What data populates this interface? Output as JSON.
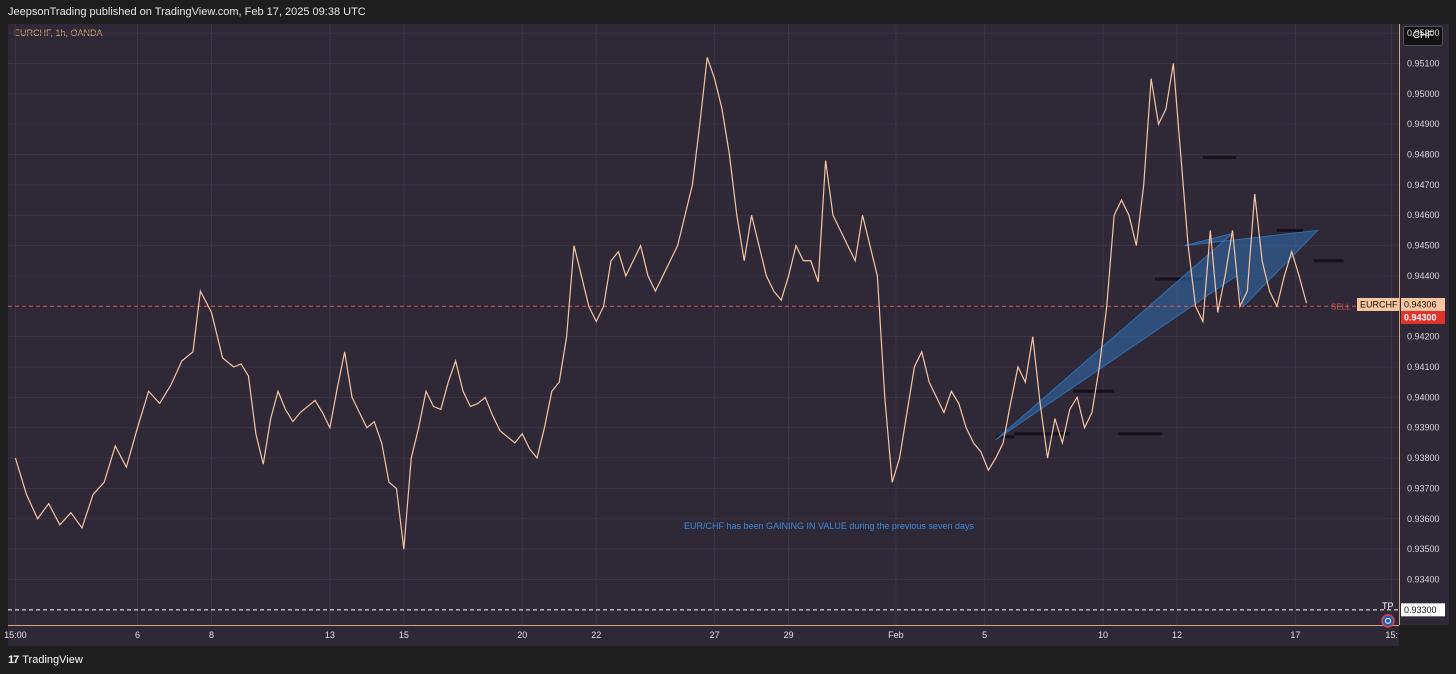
{
  "header": {
    "published_by": "JeepsonTrading published on TradingView.com, Feb 17, 2025 09:38 UTC"
  },
  "footer": {
    "brand_mark": "17",
    "brand_name": "TradingView"
  },
  "colors": {
    "price_line": "#f7c59f",
    "sell_line": "#e05555",
    "tp_line": "#ffffff",
    "accent_blue": "#2f6fb3",
    "background": "#2f2837"
  },
  "icons": {
    "tp_marker": "globe-icon"
  },
  "chart_data": {
    "type": "line",
    "symbol_title": "EURCHF, 1h, OANDA",
    "currency": "CHF",
    "annotation": "EUR/CHF has been GAINING IN VALUE during the previous seven days",
    "ylim": [
      0.9325,
      0.9523
    ],
    "y_ticks": [
      "0.95200",
      "0.95100",
      "0.95000",
      "0.94900",
      "0.94800",
      "0.94700",
      "0.94600",
      "0.94500",
      "0.94400",
      "0.94200",
      "0.94100",
      "0.94000",
      "0.93900",
      "0.93800",
      "0.93700",
      "0.93600",
      "0.93500",
      "0.93400"
    ],
    "x_ticks": [
      {
        "label": "15:00",
        "x": 0
      },
      {
        "label": "6",
        "x": 3.3
      },
      {
        "label": "8",
        "x": 5.3
      },
      {
        "label": "13",
        "x": 8.5
      },
      {
        "label": "15",
        "x": 10.5
      },
      {
        "label": "20",
        "x": 13.7
      },
      {
        "label": "22",
        "x": 15.7
      },
      {
        "label": "27",
        "x": 18.9
      },
      {
        "label": "29",
        "x": 20.9
      },
      {
        "label": "Feb",
        "x": 23.8
      },
      {
        "label": "5",
        "x": 26.2
      },
      {
        "label": "10",
        "x": 29.4
      },
      {
        "label": "12",
        "x": 31.4
      },
      {
        "label": "17",
        "x": 34.6
      },
      {
        "label": "15:",
        "x": 37.2
      }
    ],
    "xlim": [
      -0.2,
      37.4
    ],
    "series": [
      {
        "values": [
          [
            0,
            0.938
          ],
          [
            0.3,
            0.9368
          ],
          [
            0.6,
            0.936
          ],
          [
            0.9,
            0.9365
          ],
          [
            1.2,
            0.9358
          ],
          [
            1.5,
            0.9362
          ],
          [
            1.8,
            0.9357
          ],
          [
            2.1,
            0.9368
          ],
          [
            2.4,
            0.9372
          ],
          [
            2.7,
            0.9384
          ],
          [
            3.0,
            0.9377
          ],
          [
            3.3,
            0.939
          ],
          [
            3.6,
            0.9402
          ],
          [
            3.9,
            0.9398
          ],
          [
            4.2,
            0.9404
          ],
          [
            4.5,
            0.9412
          ],
          [
            4.8,
            0.9415
          ],
          [
            5.0,
            0.9435
          ],
          [
            5.3,
            0.9428
          ],
          [
            5.6,
            0.9413
          ],
          [
            5.9,
            0.941
          ],
          [
            6.1,
            0.9411
          ],
          [
            6.3,
            0.9407
          ],
          [
            6.5,
            0.9388
          ],
          [
            6.7,
            0.9378
          ],
          [
            6.9,
            0.9393
          ],
          [
            7.1,
            0.9402
          ],
          [
            7.3,
            0.9396
          ],
          [
            7.5,
            0.9392
          ],
          [
            7.7,
            0.9395
          ],
          [
            7.9,
            0.9397
          ],
          [
            8.1,
            0.9399
          ],
          [
            8.3,
            0.9395
          ],
          [
            8.5,
            0.939
          ],
          [
            8.7,
            0.9403
          ],
          [
            8.9,
            0.9415
          ],
          [
            9.1,
            0.94
          ],
          [
            9.3,
            0.9395
          ],
          [
            9.5,
            0.939
          ],
          [
            9.7,
            0.9392
          ],
          [
            9.9,
            0.9385
          ],
          [
            10.1,
            0.9372
          ],
          [
            10.3,
            0.937
          ],
          [
            10.5,
            0.935
          ],
          [
            10.7,
            0.938
          ],
          [
            10.9,
            0.939
          ],
          [
            11.1,
            0.9402
          ],
          [
            11.3,
            0.9397
          ],
          [
            11.5,
            0.9396
          ],
          [
            11.7,
            0.9405
          ],
          [
            11.9,
            0.9412
          ],
          [
            12.1,
            0.9402
          ],
          [
            12.3,
            0.9397
          ],
          [
            12.5,
            0.9398
          ],
          [
            12.7,
            0.94
          ],
          [
            12.9,
            0.9394
          ],
          [
            13.1,
            0.9389
          ],
          [
            13.3,
            0.9387
          ],
          [
            13.5,
            0.9385
          ],
          [
            13.7,
            0.9388
          ],
          [
            13.9,
            0.9383
          ],
          [
            14.1,
            0.938
          ],
          [
            14.3,
            0.939
          ],
          [
            14.5,
            0.9402
          ],
          [
            14.7,
            0.9405
          ],
          [
            14.9,
            0.942
          ],
          [
            15.1,
            0.945
          ],
          [
            15.3,
            0.944
          ],
          [
            15.5,
            0.943
          ],
          [
            15.7,
            0.9425
          ],
          [
            15.9,
            0.943
          ],
          [
            16.1,
            0.9445
          ],
          [
            16.3,
            0.9448
          ],
          [
            16.5,
            0.944
          ],
          [
            16.7,
            0.9445
          ],
          [
            16.9,
            0.945
          ],
          [
            17.1,
            0.944
          ],
          [
            17.3,
            0.9435
          ],
          [
            17.5,
            0.944
          ],
          [
            17.7,
            0.9445
          ],
          [
            17.9,
            0.945
          ],
          [
            18.1,
            0.946
          ],
          [
            18.3,
            0.947
          ],
          [
            18.5,
            0.949
          ],
          [
            18.7,
            0.9512
          ],
          [
            18.9,
            0.9505
          ],
          [
            19.1,
            0.9495
          ],
          [
            19.3,
            0.948
          ],
          [
            19.5,
            0.946
          ],
          [
            19.7,
            0.9445
          ],
          [
            19.9,
            0.946
          ],
          [
            20.1,
            0.945
          ],
          [
            20.3,
            0.944
          ],
          [
            20.5,
            0.9435
          ],
          [
            20.7,
            0.9432
          ],
          [
            20.9,
            0.944
          ],
          [
            21.1,
            0.945
          ],
          [
            21.3,
            0.9445
          ],
          [
            21.5,
            0.9445
          ],
          [
            21.7,
            0.9438
          ],
          [
            21.9,
            0.9478
          ],
          [
            22.1,
            0.946
          ],
          [
            22.3,
            0.9455
          ],
          [
            22.5,
            0.945
          ],
          [
            22.7,
            0.9445
          ],
          [
            22.9,
            0.946
          ],
          [
            23.1,
            0.945
          ],
          [
            23.3,
            0.944
          ],
          [
            23.5,
            0.94
          ],
          [
            23.7,
            0.9372
          ],
          [
            23.9,
            0.938
          ],
          [
            24.1,
            0.9395
          ],
          [
            24.3,
            0.941
          ],
          [
            24.5,
            0.9415
          ],
          [
            24.7,
            0.9405
          ],
          [
            24.9,
            0.94
          ],
          [
            25.1,
            0.9395
          ],
          [
            25.3,
            0.9402
          ],
          [
            25.5,
            0.9398
          ],
          [
            25.7,
            0.939
          ],
          [
            25.9,
            0.9385
          ],
          [
            26.1,
            0.9382
          ],
          [
            26.3,
            0.9376
          ],
          [
            26.5,
            0.938
          ],
          [
            26.7,
            0.9385
          ],
          [
            26.9,
            0.9398
          ],
          [
            27.1,
            0.941
          ],
          [
            27.3,
            0.9405
          ],
          [
            27.5,
            0.942
          ],
          [
            27.7,
            0.9398
          ],
          [
            27.9,
            0.938
          ],
          [
            28.1,
            0.9393
          ],
          [
            28.3,
            0.9385
          ],
          [
            28.5,
            0.9396
          ],
          [
            28.7,
            0.94
          ],
          [
            28.9,
            0.939
          ],
          [
            29.1,
            0.9395
          ],
          [
            29.3,
            0.941
          ],
          [
            29.5,
            0.943
          ],
          [
            29.7,
            0.946
          ],
          [
            29.9,
            0.9465
          ],
          [
            30.1,
            0.946
          ],
          [
            30.3,
            0.945
          ],
          [
            30.5,
            0.947
          ],
          [
            30.7,
            0.9505
          ],
          [
            30.9,
            0.949
          ],
          [
            31.1,
            0.9495
          ],
          [
            31.3,
            0.951
          ],
          [
            31.5,
            0.948
          ],
          [
            31.7,
            0.945
          ],
          [
            31.9,
            0.943
          ],
          [
            32.1,
            0.9425
          ],
          [
            32.3,
            0.9455
          ],
          [
            32.5,
            0.9428
          ],
          [
            32.7,
            0.944
          ],
          [
            32.9,
            0.9455
          ],
          [
            33.1,
            0.943
          ],
          [
            33.3,
            0.9435
          ],
          [
            33.5,
            0.9467
          ],
          [
            33.7,
            0.9445
          ],
          [
            33.9,
            0.9435
          ],
          [
            34.1,
            0.943
          ],
          [
            34.3,
            0.944
          ],
          [
            34.5,
            0.9448
          ],
          [
            34.7,
            0.944
          ],
          [
            34.9,
            0.9431
          ]
        ]
      }
    ],
    "levels": {
      "current_price": {
        "label": "EURCHF",
        "value": 0.94306,
        "text": "0.94306"
      },
      "sell": {
        "label": "SELL",
        "value": 0.943,
        "text": "0.94300"
      },
      "tp": {
        "label": "TP",
        "value": 0.933,
        "text": "0.93300"
      }
    },
    "drawing_arrow": [
      [
        26.5,
        0.9386
      ],
      [
        32.9,
        0.9454
      ],
      [
        31.6,
        0.945
      ],
      [
        35.2,
        0.9455
      ],
      [
        33.2,
        0.943
      ],
      [
        33.0,
        0.944
      ]
    ],
    "marker_lines": [
      {
        "x0": 26.5,
        "x1": 27.0,
        "y": 0.9387
      },
      {
        "x0": 27.0,
        "x1": 28.5,
        "y": 0.9388
      },
      {
        "x0": 28.6,
        "x1": 29.7,
        "y": 0.9402
      },
      {
        "x0": 29.8,
        "x1": 31.0,
        "y": 0.9388
      },
      {
        "x0": 30.8,
        "x1": 32.1,
        "y": 0.9439
      },
      {
        "x0": 32.1,
        "x1": 33.0,
        "y": 0.9479
      },
      {
        "x0": 34.1,
        "x1": 34.8,
        "y": 0.9455
      },
      {
        "x0": 35.1,
        "x1": 35.9,
        "y": 0.9445
      }
    ]
  }
}
